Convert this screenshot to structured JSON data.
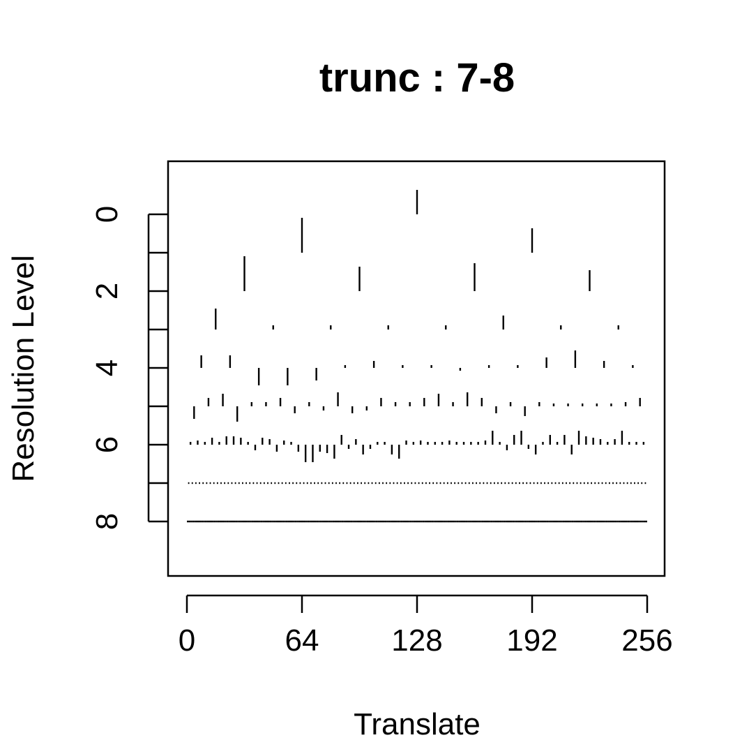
{
  "chart_data": {
    "type": "scatter",
    "title": "trunc : 7-8",
    "xlabel": "Translate",
    "ylabel": "Resolution Level",
    "xlim": [
      0,
      256
    ],
    "ylim": [
      9.4,
      -1.4
    ],
    "y_reversed": true,
    "x_ticks": [
      0,
      64,
      128,
      192,
      256
    ],
    "x_tick_labels": [
      "0",
      "64",
      "128",
      "192",
      "256"
    ],
    "y_ticks": [
      0,
      1,
      2,
      3,
      4,
      5,
      6,
      7,
      8
    ],
    "y_tick_labels": [
      "0",
      "",
      "2",
      "",
      "4",
      "",
      "6",
      "",
      "8"
    ],
    "grid": false,
    "mark_style": "vertical segment at (position, level) whose length is the coefficient magnitude; positive values drawn upward",
    "series": [
      {
        "level": 0,
        "values": [
          0.35
        ]
      },
      {
        "level": 1,
        "values": [
          0.5,
          0.35
        ]
      },
      {
        "level": 2,
        "values": [
          0.5,
          0.35,
          0.4,
          0.3
        ]
      },
      {
        "level": 3,
        "values": [
          0.3,
          0.06,
          0.06,
          0.06,
          0.06,
          0.2,
          0.06,
          0.06
        ]
      },
      {
        "level": 4,
        "values": [
          0.18,
          0.18,
          -0.25,
          -0.25,
          -0.18,
          0.04,
          0.1,
          0.04,
          0.04,
          -0.04,
          0.04,
          0.04,
          0.15,
          0.25,
          0.1,
          0.04
        ]
      },
      {
        "level": 5,
        "values": [
          -0.18,
          0.12,
          0.18,
          -0.22,
          0.06,
          0.06,
          0.12,
          -0.1,
          0.06,
          -0.06,
          0.2,
          -0.1,
          -0.06,
          0.12,
          0.06,
          0.06,
          0.12,
          0.18,
          0.06,
          0.2,
          0.12,
          -0.1,
          0.06,
          -0.14,
          0.06,
          0.04,
          0.04,
          0.04,
          0.04,
          0.04,
          0.06,
          0.12
        ]
      },
      {
        "level": 6,
        "values": [
          0.04,
          0.06,
          0.04,
          0.1,
          0.04,
          0.12,
          0.12,
          0.1,
          0.04,
          -0.08,
          0.1,
          0.08,
          -0.1,
          0.06,
          0.04,
          -0.1,
          -0.25,
          -0.25,
          -0.1,
          -0.12,
          -0.2,
          0.14,
          -0.06,
          0.08,
          -0.14,
          -0.06,
          0.04,
          0.04,
          -0.14,
          -0.2,
          0.06,
          0.04,
          0.06,
          0.04,
          0.04,
          0.04,
          0.06,
          0.04,
          0.04,
          0.04,
          0.04,
          0.06,
          0.2,
          0.04,
          -0.08,
          0.14,
          0.2,
          -0.06,
          -0.14,
          0.04,
          0.14,
          0.04,
          0.14,
          -0.14,
          0.2,
          0.12,
          0.1,
          0.08,
          0.04,
          0.08,
          0.2,
          0.04,
          0.04,
          0.04
        ]
      }
    ],
    "dense_levels": [
      {
        "level": 7,
        "count": 128
      },
      {
        "level": 8,
        "count": 256
      }
    ]
  }
}
